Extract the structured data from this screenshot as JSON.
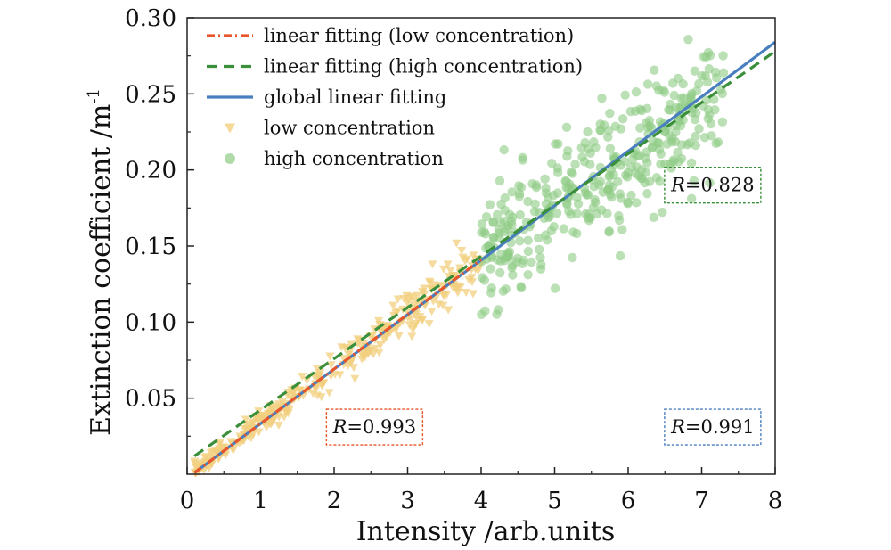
{
  "chart_data": {
    "type": "scatter",
    "xlabel": "Intensity /arb.units",
    "ylabel": "Extinction coefficient /m",
    "ylabel_sup": "-1",
    "xlim": [
      0,
      8
    ],
    "ylim": [
      0,
      0.3
    ],
    "x_ticks": [
      "0",
      "1",
      "2",
      "3",
      "4",
      "5",
      "6",
      "7",
      "8"
    ],
    "y_ticks": [
      "0.05",
      "0.10",
      "0.15",
      "0.20",
      "0.25",
      "0.30"
    ],
    "grid": false,
    "legend_position": "top-left",
    "legend": [
      {
        "label": "linear fitting (low concentration)",
        "style": "dashdot-line",
        "color": "#e8552a"
      },
      {
        "label": "linear fitting (high concentration)",
        "style": "dashed-line",
        "color": "#3a8f3a"
      },
      {
        "label": "global linear fitting",
        "style": "solid-line",
        "color": "#4a7fbf"
      },
      {
        "label": "low concentration",
        "style": "triangle-marker",
        "color": "#f2cf7e"
      },
      {
        "label": "high concentration",
        "style": "circle-marker",
        "color": "#8fcc85"
      }
    ],
    "fits": [
      {
        "name": "linear fitting (low concentration)",
        "x_range": [
          0.1,
          4.0
        ],
        "y_range": [
          0.001,
          0.141
        ],
        "color": "#e8552a",
        "dash": "dashdot"
      },
      {
        "name": "linear fitting (high concentration)",
        "x_range": [
          0.1,
          8.0
        ],
        "y_range": [
          0.012,
          0.278
        ],
        "color": "#3a8f3a",
        "dash": "dashed"
      },
      {
        "name": "global linear fitting",
        "x_range": [
          0.1,
          8.0
        ],
        "y_range": [
          0.001,
          0.284
        ],
        "color": "#4a7fbf",
        "dash": "solid"
      }
    ],
    "series": [
      {
        "name": "low concentration",
        "marker": "triangle",
        "color": "#f2cf7e",
        "x_range": [
          0.1,
          4.0
        ],
        "count": 330,
        "slope": 0.0358,
        "intercept": -0.002,
        "noise_sd": 0.006
      },
      {
        "name": "high concentration",
        "marker": "circle",
        "color": "#8fcc85",
        "x_range": [
          4.0,
          7.3
        ],
        "count": 380,
        "slope": 0.0345,
        "intercept": 0.0,
        "noise_sd": 0.021
      }
    ],
    "annotations": [
      {
        "prefix": "R",
        "value": "=0.993",
        "box_color": "#e8552a",
        "x": 2.55,
        "y": 0.031
      },
      {
        "prefix": "R",
        "value": "=0.828",
        "box_color": "#3a8f3a",
        "x": 7.15,
        "y": 0.19
      },
      {
        "prefix": "R",
        "value": "=0.991",
        "box_color": "#4a7fbf",
        "x": 7.15,
        "y": 0.031
      }
    ]
  }
}
